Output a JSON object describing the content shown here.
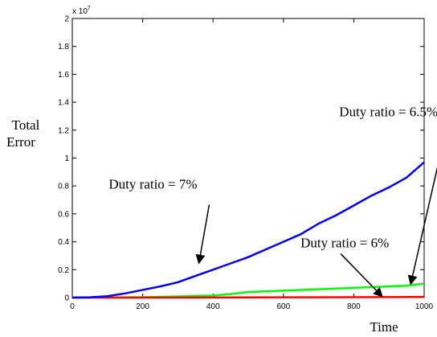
{
  "chart_data": {
    "type": "line",
    "xlabel": "Time",
    "ylabel": [
      "Total",
      "Error"
    ],
    "y_multiplier": "x 10",
    "y_multiplier_exp": "7",
    "xlim": [
      0,
      1000
    ],
    "ylim": [
      0,
      2
    ],
    "x_ticks": [
      0,
      200,
      400,
      600,
      800,
      1000
    ],
    "y_ticks": [
      0,
      0.2,
      0.4,
      0.6,
      0.8,
      1,
      1.2,
      1.4,
      1.6,
      1.8,
      2
    ],
    "grid": false,
    "series": [
      {
        "color": "#0000ff",
        "x": [
          0,
          50,
          100,
          150,
          200,
          250,
          300,
          350,
          400,
          450,
          500,
          550,
          600,
          650,
          700,
          750,
          800,
          850,
          900,
          950,
          1000
        ],
        "y": [
          0,
          0.002,
          0.01,
          0.03,
          0.055,
          0.08,
          0.11,
          0.155,
          0.2,
          0.245,
          0.29,
          0.345,
          0.4,
          0.455,
          0.53,
          0.59,
          0.66,
          0.73,
          0.79,
          0.86,
          0.97
        ]
      },
      {
        "color": "#00ff00",
        "x": [
          0,
          100,
          200,
          300,
          400,
          450,
          500,
          550,
          600,
          650,
          700,
          750,
          800,
          850,
          900,
          950,
          1000
        ],
        "y": [
          0,
          0.001,
          0.003,
          0.008,
          0.015,
          0.025,
          0.04,
          0.045,
          0.05,
          0.055,
          0.06,
          0.065,
          0.07,
          0.075,
          0.08,
          0.085,
          0.1
        ]
      },
      {
        "color": "#ff0000",
        "x": [
          0,
          200,
          400,
          600,
          800,
          1000
        ],
        "y": [
          0,
          0,
          0.001,
          0.002,
          0.003,
          0.005
        ]
      }
    ],
    "annotations": [
      {
        "text": "Duty ratio = 7%",
        "x": 195,
        "y": 0.78,
        "arrow_to": [
          360,
          0.25
        ]
      },
      {
        "text": "Duty ratio = 6.5%",
        "x": 850,
        "y": 1.3,
        "arrow_to": [
          962,
          0.1
        ]
      },
      {
        "text": "Duty ratio = 6%",
        "x": 740,
        "y": 0.36,
        "arrow_to": [
          880,
          0.01
        ]
      }
    ]
  }
}
